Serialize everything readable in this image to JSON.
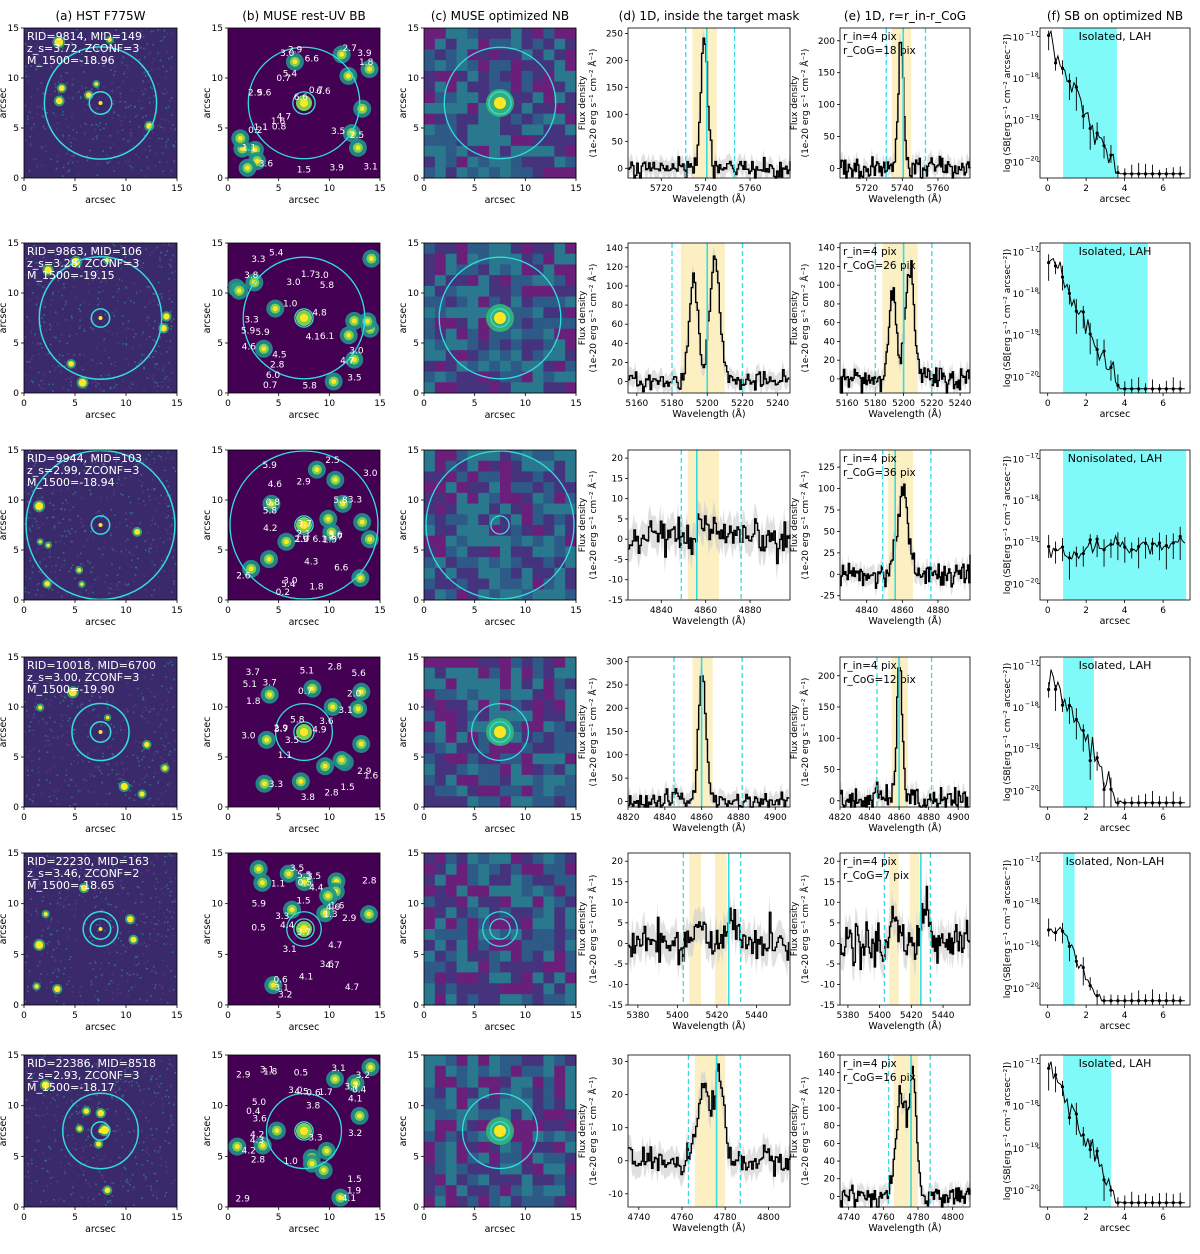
{
  "column_titles": [
    "(a) HST F775W",
    "(b) MUSE rest-UV BB",
    "(c) MUSE optimized NB",
    "(d) 1D, inside the target mask",
    "(e) 1D, r=r_in-r_CoG",
    "(f) SB on optimized NB"
  ],
  "labels": {
    "arcsec": "arcsec",
    "wavelength": "Wavelength (Å)",
    "flux_line1": "Flux density",
    "flux_line2": "(1e-20 erg s⁻¹ cm⁻² Å⁻¹)",
    "sb_label": "log (SB[erg s⁻¹ cm⁻² arcsec⁻²])",
    "img_ticks": [
      "0",
      "5",
      "10",
      "15"
    ]
  },
  "colors": {
    "cyan": "#33dde0",
    "shade": "#fbedb8",
    "sb_band": "#80f9f9",
    "viridis_dark": "#440154"
  },
  "rows": [
    {
      "hst_text": [
        "RID=9814, MID=149",
        "z_s=3.72, ZCONF=3",
        "M_1500=-18.96"
      ],
      "circles": {
        "big": 5.5,
        "small": 1.1
      },
      "bb_labels": [
        "5.4",
        "3.1",
        "3.9",
        "3.5",
        "0.7",
        "3.9",
        "6.6",
        "6.6",
        "0.8",
        "0.2",
        "4.7",
        "2.9",
        "6.6",
        "0.7",
        "2.9",
        "1.6",
        "1.8",
        "1.1",
        "1.5",
        "3.0",
        "2.7",
        "3.6",
        "5.6",
        "2.5",
        "1.1"
      ],
      "spec": {
        "xmin": 5705,
        "xmax": 5778,
        "xticks": [
          5720,
          5740,
          5760
        ],
        "ymin": -18,
        "ymax": 260,
        "yticks": [
          0,
          50,
          100,
          150,
          200,
          250
        ],
        "dashed": [
          5731,
          5753
        ],
        "solid": 5740.5,
        "shade": [
          5734,
          5745
        ],
        "peaks": [
          {
            "c": 5739,
            "w": 1.5,
            "a": 245
          }
        ]
      },
      "e_text": [
        "r_in=4 pix",
        "r_CoG=18 pix"
      ],
      "spec_e": {
        "ymax": 220,
        "yticks": [
          0,
          50,
          100,
          150,
          200
        ],
        "ymin": -15,
        "amp": 200
      },
      "sb": {
        "label": "Isolated, LAH",
        "band": [
          0.8,
          3.6
        ]
      }
    },
    {
      "hst_text": [
        "RID=9863, MID=106",
        "z_s=3.28, ZCONF=3",
        "M_1500=-19.15"
      ],
      "circles": {
        "big": 6.0,
        "small": 0.9
      },
      "bb_labels": [
        "4.7",
        "5.9",
        "4.8",
        "5.4",
        "1.7",
        "4.1",
        "1.0",
        "2.8",
        "3.3",
        "4.5",
        "5.8",
        "3.5",
        "3.0",
        "3.0",
        "5.9",
        "6.0",
        "0.7",
        "3.0",
        "6.1",
        "3.8",
        "4.6",
        "3.3",
        "5.8"
      ],
      "spec": {
        "xmin": 5155,
        "xmax": 5247,
        "xticks": [
          5160,
          5180,
          5200,
          5220,
          5240
        ],
        "ymin": -12,
        "ymax": 145,
        "yticks": [
          0,
          20,
          40,
          60,
          80,
          100,
          120,
          140
        ],
        "dashed": [
          5180,
          5220
        ],
        "solid": 5200,
        "shade": [
          5185,
          5210
        ],
        "peaks": [
          {
            "c": 5192,
            "w": 2.5,
            "a": 110
          },
          {
            "c": 5204,
            "w": 3,
            "a": 125
          }
        ]
      },
      "e_text": [
        "r_in=4 pix",
        "r_CoG=26 pix"
      ],
      "spec_e": {
        "ymax": 145,
        "yticks": [
          0,
          20,
          40,
          60,
          80,
          100,
          120,
          140
        ],
        "ymin": -15,
        "amp": 120
      },
      "sb": {
        "label": "Isolated, LAH",
        "band": [
          0.8,
          5.2
        ]
      }
    },
    {
      "hst_text": [
        "RID=9944, MID=103",
        "z_s=2.99, ZCONF=3",
        "M_1500=-18.94"
      ],
      "circles": {
        "big": 7.3,
        "small": 0.9
      },
      "bb_labels": [
        "6.6",
        "0.8",
        "0.2",
        "2.9",
        "5.4",
        "3.7",
        "1.0",
        "2.9",
        "5.8",
        "1.8",
        "3.0",
        "5.9",
        "1.5",
        "2.7",
        "2.5",
        "4.6",
        "6.1",
        "3.6",
        "3.0",
        "5.8",
        "2.6",
        "3.3",
        "4.2",
        "4.3",
        "2.1"
      ],
      "spec": {
        "xmin": 4825,
        "xmax": 4898,
        "xticks": [
          4840,
          4860,
          4880
        ],
        "ymin": -15,
        "ymax": 22,
        "yticks": [
          -15,
          -10,
          -5,
          0,
          5,
          10,
          15,
          20
        ],
        "dashed": [
          4849,
          4876
        ],
        "solid": 4856,
        "shade": [
          4852,
          4866
        ],
        "peaks": [
          {
            "c": 4860,
            "w": 3,
            "a": 3
          }
        ]
      },
      "e_text": [
        "r_in=4 pix",
        "r_CoG=36 pix"
      ],
      "spec_e": {
        "ymax": 145,
        "yticks": [
          -25,
          0,
          25,
          50,
          75,
          100,
          125
        ],
        "ymin": -30,
        "amp": 100
      },
      "sb": {
        "label": "Nonisolated, LAH",
        "band": [
          0.8,
          7.2
        ]
      }
    },
    {
      "hst_text": [
        "RID=10018, MID=6700",
        "z_s=3.00, ZCONF=3",
        "M_1500=-19.90"
      ],
      "circles": {
        "big": 2.8,
        "small": 1.0
      },
      "bb_labels": [
        "2.9",
        "0.7",
        "1.8",
        "3.7",
        "1.6",
        "3.1",
        "1.1",
        "3.6",
        "5.8",
        "3.7",
        "3.0",
        "2.0",
        "3.8",
        "2.8",
        "5.6",
        "3.3",
        "1.5",
        "2.8",
        "3.5",
        "3.7",
        "5.1",
        "5.1",
        "2.9",
        "4.9"
      ],
      "spec": {
        "xmin": 4820,
        "xmax": 4908,
        "xticks": [
          4820,
          4840,
          4860,
          4880,
          4900
        ],
        "ymin": -12,
        "ymax": 310,
        "yticks": [
          0,
          50,
          100,
          150,
          200,
          250,
          300
        ],
        "dashed": [
          4845,
          4882
        ],
        "solid": 4860,
        "shade": [
          4855,
          4866
        ],
        "peaks": [
          {
            "c": 4860,
            "w": 2,
            "a": 280
          },
          {
            "c": 4846,
            "w": 2,
            "a": 15
          }
        ]
      },
      "e_text": [
        "r_in=4 pix",
        "r_CoG=12 pix"
      ],
      "spec_e": {
        "ymax": 230,
        "yticks": [
          0,
          50,
          100,
          150,
          200
        ],
        "ymin": -10,
        "amp": 210
      },
      "sb": {
        "label": "Isolated, LAH",
        "band": [
          0.8,
          2.4
        ]
      }
    },
    {
      "hst_text": [
        "RID=22230, MID=163",
        "z_s=3.46, ZCONF=2",
        "M_1500=-18.65"
      ],
      "circles": {
        "big": 1.7,
        "small": 1.0
      },
      "bb_labels": [
        "3.3",
        "4.1",
        "4.4",
        "4.6",
        "3.5",
        "1.6",
        "4.7",
        "3.2",
        "0.6",
        "5.5",
        "2.8",
        "4.7",
        "3.1",
        "5.9",
        "0.5",
        "3.5",
        "2.9",
        "1.3",
        "3.7",
        "4.7",
        "3.6",
        "3.1",
        "1.5",
        "0.5",
        "4.4",
        "1.1"
      ],
      "spec": {
        "xmin": 5375,
        "xmax": 5457,
        "xticks": [
          5380,
          5400,
          5420,
          5440
        ],
        "ymin": -15,
        "ymax": 22,
        "yticks": [
          -15,
          -10,
          -5,
          0,
          5,
          10,
          15,
          20
        ],
        "dashed": [
          5403,
          5432
        ],
        "solid": 5426,
        "shade": [
          5406,
          5412
        ],
        "shade2": [
          5419,
          5425
        ],
        "peaks": [
          {
            "c": 5410,
            "w": 3,
            "a": 4
          },
          {
            "c": 5428,
            "w": 3,
            "a": 6
          }
        ]
      },
      "e_text": [
        "r_in=4 pix",
        "r_CoG=7 pix"
      ],
      "spec_e": {
        "ymax": 22,
        "yticks": [
          -15,
          -10,
          -5,
          0,
          5,
          10,
          15,
          20
        ],
        "ymin": -15,
        "amp": 8
      },
      "sb": {
        "label": "Isolated, Non-LAH",
        "band": [
          0.8,
          1.4
        ]
      }
    },
    {
      "hst_text": [
        "RID=22386, MID=8518",
        "z_s=2.93, ZCONF=3",
        "M_1500=-18.17"
      ],
      "circles": {
        "big": 3.7,
        "small": 0.9
      },
      "bb_labels": [
        "4.5",
        "1.7",
        "3.3",
        "1.9",
        "5.0",
        "3.7",
        "4.1",
        "0.5",
        "4.3",
        "3.2",
        "3.8",
        "4.2",
        "2.9",
        "4.1",
        "3.1",
        "4.2",
        "3.0",
        "1.8",
        "2.8",
        "3.6",
        "3.1",
        "0.4",
        "0.6",
        "1.0",
        "0.4",
        "1.5",
        "3.2",
        "2.9"
      ],
      "spec": {
        "xmin": 4735,
        "xmax": 4810,
        "xticks": [
          4740,
          4760,
          4780,
          4800
        ],
        "ymin": -14,
        "ymax": 32,
        "yticks": [
          -10,
          0,
          10,
          20,
          30
        ],
        "dashed": [
          4763,
          4787
        ],
        "solid": 4776,
        "shade": [
          4766,
          4780
        ],
        "peaks": [
          {
            "c": 4770,
            "w": 3,
            "a": 22
          },
          {
            "c": 4777,
            "w": 2,
            "a": 26
          }
        ]
      },
      "e_text": [
        "r_in=4 pix",
        "r_CoG=16 pix"
      ],
      "spec_e": {
        "ymax": 160,
        "yticks": [
          0,
          20,
          40,
          60,
          80,
          100,
          120,
          140,
          160
        ],
        "ymin": -12,
        "amp": 130
      },
      "sb": {
        "label": "Isolated, LAH",
        "band": [
          0.8,
          3.3
        ]
      }
    }
  ]
}
